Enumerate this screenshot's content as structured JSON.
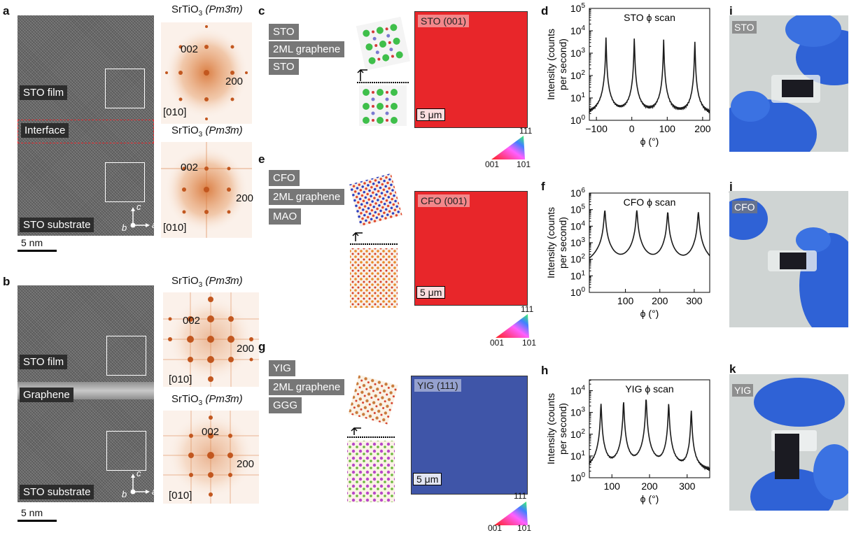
{
  "panels": {
    "a": {
      "letter": "a",
      "tem_labels": [
        "STO film",
        "Interface",
        "STO substrate"
      ],
      "scale": "5 nm",
      "axes": {
        "c": "c",
        "b": "b",
        "a": "a"
      },
      "fft": [
        {
          "title_formula": "SrTiO",
          "title_sub": "3",
          "title_sg": "(Pm3̄m)",
          "idx_002": "002",
          "idx_200": "200",
          "zone": "[010]"
        },
        {
          "title_formula": "SrTiO",
          "title_sub": "3",
          "title_sg": "(Pm3̄m)",
          "idx_002": "002",
          "idx_200": "200",
          "zone": "[010]"
        }
      ]
    },
    "b": {
      "letter": "b",
      "tem_labels": [
        "STO film",
        "Graphene",
        "STO substrate"
      ],
      "scale": "5 nm",
      "axes": {
        "c": "c",
        "b": "b",
        "a": "a"
      },
      "fft": [
        {
          "title_formula": "SrTiO",
          "title_sub": "3",
          "title_sg": "(Pm3̄m)",
          "idx_002": "002",
          "idx_200": "200",
          "zone": "[010]"
        },
        {
          "title_formula": "SrTiO",
          "title_sub": "3",
          "title_sg": "(Pm3̄m)",
          "idx_002": "002",
          "idx_200": "200",
          "zone": "[010]"
        }
      ]
    },
    "c": {
      "letter": "c",
      "stack": [
        "STO",
        "2ML graphene",
        "STO"
      ],
      "ebsd_title": "STO (001)",
      "scale": "5 μm",
      "color": "#e8262a",
      "tri": [
        "111",
        "001",
        "101"
      ]
    },
    "e": {
      "letter": "e",
      "stack": [
        "CFO",
        "2ML graphene",
        "MAO"
      ],
      "ebsd_title": "CFO (001)",
      "scale": "5 μm",
      "color": "#e8262a",
      "tri": [
        "111",
        "001",
        "101"
      ]
    },
    "g": {
      "letter": "g",
      "stack": [
        "YIG",
        "2ML graphene",
        "GGG"
      ],
      "ebsd_title": "YIG (111)",
      "scale": "5 μm",
      "color": "#3f55a8",
      "tri": [
        "111",
        "001",
        "101"
      ]
    },
    "d": {
      "letter": "d"
    },
    "f": {
      "letter": "f"
    },
    "h": {
      "letter": "h"
    },
    "i": {
      "letter": "i",
      "photo_label": "STO"
    },
    "j": {
      "letter": "j",
      "photo_label": "CFO"
    },
    "k": {
      "letter": "k",
      "photo_label": "YIG"
    }
  },
  "chart_data": [
    {
      "type": "line",
      "panel": "d",
      "title": "STO ϕ scan",
      "xlabel": "ϕ (°)",
      "ylabel": "Intensity (counts per second)",
      "ylabel_lines": [
        "Intensity (counts",
        "per second)"
      ],
      "xlim": [
        -120,
        220
      ],
      "xticks": [
        -100,
        0,
        100,
        200
      ],
      "xtick_labels": [
        "−100",
        "0",
        "100",
        "200"
      ],
      "ylim_log10": [
        0,
        5
      ],
      "ytick_exps": [
        0,
        1,
        2,
        3,
        4,
        5
      ],
      "baseline": 1.5,
      "peaks": [
        {
          "phi": -73,
          "value": 5000,
          "width": 1.3
        },
        {
          "phi": 7,
          "value": 4500,
          "width": 1.3
        },
        {
          "phi": 90,
          "value": 4000,
          "width": 1.3
        },
        {
          "phi": 178,
          "value": 3200,
          "width": 1.3
        }
      ]
    },
    {
      "type": "line",
      "panel": "f",
      "title": "CFO ϕ scan",
      "xlabel": "ϕ (°)",
      "ylabel": "Intensity (counts per second)",
      "ylabel_lines": [
        "Intensity (counts",
        "per second)"
      ],
      "xlim": [
        -5,
        345
      ],
      "xticks": [
        100,
        200,
        300
      ],
      "xtick_labels": [
        "100",
        "200",
        "300"
      ],
      "ylim_log10": [
        0,
        6
      ],
      "ytick_exps": [
        0,
        1,
        2,
        3,
        4,
        5,
        6
      ],
      "baseline": 3,
      "peaks": [
        {
          "phi": 40,
          "value": 90000,
          "width": 3
        },
        {
          "phi": 133,
          "value": 90000,
          "width": 3
        },
        {
          "phi": 223,
          "value": 70000,
          "width": 3
        },
        {
          "phi": 312,
          "value": 70000,
          "width": 3
        }
      ]
    },
    {
      "type": "line",
      "panel": "h",
      "title": "YIG ϕ scan",
      "xlabel": "ϕ (°)",
      "ylabel": "Intensity (counts per second)",
      "ylabel_lines": [
        "Intensity (counts",
        "per second)"
      ],
      "xlim": [
        40,
        360
      ],
      "xticks": [
        100,
        200,
        300
      ],
      "xtick_labels": [
        "100",
        "200",
        "300"
      ],
      "ylim_log10": [
        0,
        4.5
      ],
      "ytick_exps": [
        0,
        1,
        2,
        3,
        4
      ],
      "baseline": 1.5,
      "peaks": [
        {
          "phi": 71,
          "value": 2500,
          "width": 2
        },
        {
          "phi": 131,
          "value": 3200,
          "width": 2
        },
        {
          "phi": 191,
          "value": 4500,
          "width": 2
        },
        {
          "phi": 251,
          "value": 2500,
          "width": 2
        },
        {
          "phi": 311,
          "value": 1200,
          "width": 2
        }
      ]
    }
  ]
}
